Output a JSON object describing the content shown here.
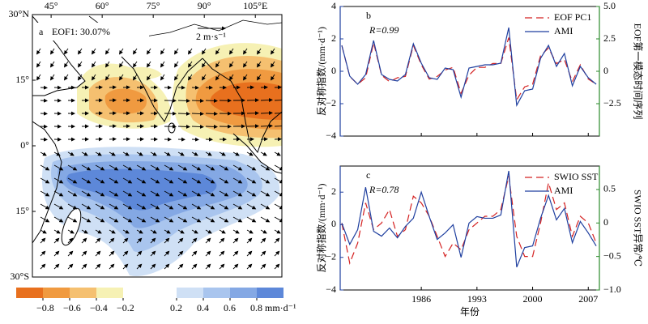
{
  "chart_data": [
    {
      "type": "map",
      "panel": "a",
      "annotation": "EOF1: 30.07%",
      "vector_scale": "2 m·s⁻¹",
      "xlim": [
        39.5,
        112.8
      ],
      "ylim": [
        -30,
        30
      ],
      "xticks": [
        {
          "value": 45,
          "label": "45°"
        },
        {
          "value": 60,
          "label": "60°"
        },
        {
          "value": 75,
          "label": "75°"
        },
        {
          "value": 90,
          "label": "90°"
        },
        {
          "value": 105,
          "label": "105°E"
        }
      ],
      "yticks": [
        {
          "value": 30,
          "label": "30°N"
        },
        {
          "value": 15,
          "label": "15°"
        },
        {
          "value": 0,
          "label": "0°"
        },
        {
          "value": -15,
          "label": "15°"
        },
        {
          "value": -30,
          "label": "30°S"
        }
      ],
      "colorbar": {
        "lim": [
          -1,
          1
        ],
        "ticks": [
          {
            "value": -0.8,
            "label": "−0.8"
          },
          {
            "value": -0.6,
            "label": "−0.6"
          },
          {
            "value": -0.4,
            "label": "−0.4"
          },
          {
            "value": -0.2,
            "label": "−0.2"
          },
          0.2,
          0.4,
          0.6,
          {
            "value": 0.8,
            "label": "0.8 mm·d⁻¹"
          }
        ],
        "neg_colors": [
          "#e8701e",
          "#f09a40",
          "#f5c070",
          "#f6f1b4"
        ],
        "pos_colors": [
          "#cfe0f5",
          "#a9c5ee",
          "#84a8e4",
          "#5d88d9"
        ]
      }
    },
    {
      "type": "line",
      "panel": "b",
      "annotation": "R=0.99",
      "y_label": "反对称指数/(mm·d⁻¹)",
      "y2_label": "EOF第一模态时间序列",
      "x": [
        1976,
        1977,
        1978,
        1979,
        1980,
        1981,
        1982,
        1983,
        1984,
        1985,
        1986,
        1987,
        1988,
        1989,
        1990,
        1991,
        1992,
        1993,
        1994,
        1995,
        1996,
        1997,
        1998,
        1999,
        2000,
        2001,
        2002,
        2003,
        2004,
        2005,
        2006,
        2007,
        2008
      ],
      "xlim": [
        1975.8,
        2008.4
      ],
      "ylim": [
        -4,
        4
      ],
      "yticks": [
        {
          "value": -4,
          "label": "−4"
        },
        {
          "value": -2,
          "label": "−2"
        },
        0,
        2,
        4
      ],
      "y2lim": [
        -5,
        5
      ],
      "y2ticks": [
        {
          "value": -2.5,
          "label": "−2.5"
        },
        0,
        {
          "value": 2.5,
          "label": "2.5"
        },
        {
          "value": 5,
          "label": "5.0"
        }
      ],
      "legend": "upper right",
      "series": [
        {
          "name": "EOF PC1",
          "color": "#d42020",
          "dashed": true,
          "axis": "y2",
          "values": [
            2.0,
            -0.4,
            -1.0,
            -0.5,
            2.2,
            -0.3,
            -0.8,
            -0.5,
            -0.4,
            2.0,
            0.5,
            -0.6,
            -0.4,
            0.1,
            0.3,
            -1.7,
            -0.3,
            0.3,
            0.3,
            0.6,
            0.6,
            2.6,
            -2.2,
            -1.2,
            -1.0,
            1.2,
            1.8,
            0.6,
            0.9,
            -0.8,
            0.5,
            -0.6,
            -1.0
          ]
        },
        {
          "name": "AMI",
          "color": "#1f3f9f",
          "dashed": false,
          "values": [
            1.6,
            -0.3,
            -0.8,
            -0.2,
            1.9,
            -0.2,
            -0.5,
            -0.6,
            -0.2,
            1.7,
            0.5,
            -0.4,
            -0.5,
            0.2,
            0.1,
            -1.6,
            0.2,
            0.3,
            0.4,
            0.4,
            0.5,
            2.7,
            -2.1,
            -1.2,
            -1.1,
            0.8,
            1.6,
            0.3,
            1.1,
            -0.9,
            0.3,
            -0.4,
            -0.8
          ]
        }
      ]
    },
    {
      "type": "line",
      "panel": "c",
      "annotation": "R=0.78",
      "y_label": "反对称指数/(mm·d⁻¹)",
      "y2_label": "SWIO SST异常/℃",
      "x_label": "年份",
      "x": [
        1976,
        1977,
        1978,
        1979,
        1980,
        1981,
        1982,
        1983,
        1984,
        1985,
        1986,
        1987,
        1988,
        1989,
        1990,
        1991,
        1992,
        1993,
        1994,
        1995,
        1996,
        1997,
        1998,
        1999,
        2000,
        2001,
        2002,
        2003,
        2004,
        2005,
        2006,
        2007,
        2008
      ],
      "xlim": [
        1975.8,
        2008.4
      ],
      "xticks": [
        1986,
        1993,
        2000,
        2007
      ],
      "ylim": [
        -4,
        3.6
      ],
      "yticks": [
        {
          "value": -4,
          "label": "−4"
        },
        {
          "value": -2,
          "label": "−2"
        },
        0,
        2
      ],
      "y2lim": [
        -1.0,
        0.85
      ],
      "y2ticks": [
        {
          "value": -1.0,
          "label": "−1.0"
        },
        {
          "value": -0.5,
          "label": "−0.5"
        },
        0,
        0.5
      ],
      "legend": "upper right",
      "series": [
        {
          "name": "SWIO SST",
          "color": "#d42020",
          "dashed": true,
          "axis": "y2",
          "values": [
            0.0,
            -0.6,
            -0.3,
            0.3,
            -0.1,
            0.0,
            0.2,
            -0.2,
            -0.1,
            0.4,
            0.3,
            0.1,
            -0.2,
            -0.5,
            -0.3,
            -0.4,
            -0.1,
            0.0,
            0.1,
            0.1,
            0.2,
            0.7,
            -0.2,
            -0.5,
            -0.5,
            0.0,
            0.6,
            0.2,
            0.3,
            -0.2,
            0.1,
            0.0,
            -0.3
          ]
        },
        {
          "name": "AMI",
          "color": "#1f3f9f",
          "dashed": false,
          "values": [
            0.1,
            -1.2,
            -0.3,
            2.3,
            -0.4,
            -0.7,
            -0.2,
            -0.8,
            -0.1,
            0.4,
            2.0,
            0.5,
            -0.9,
            -0.5,
            0.0,
            -2.0,
            0.1,
            0.5,
            0.4,
            0.4,
            0.6,
            3.3,
            -2.6,
            -1.4,
            -1.3,
            0.4,
            1.8,
            0.3,
            1.0,
            -1.1,
            0.2,
            -0.5,
            -1.3
          ]
        }
      ]
    }
  ]
}
